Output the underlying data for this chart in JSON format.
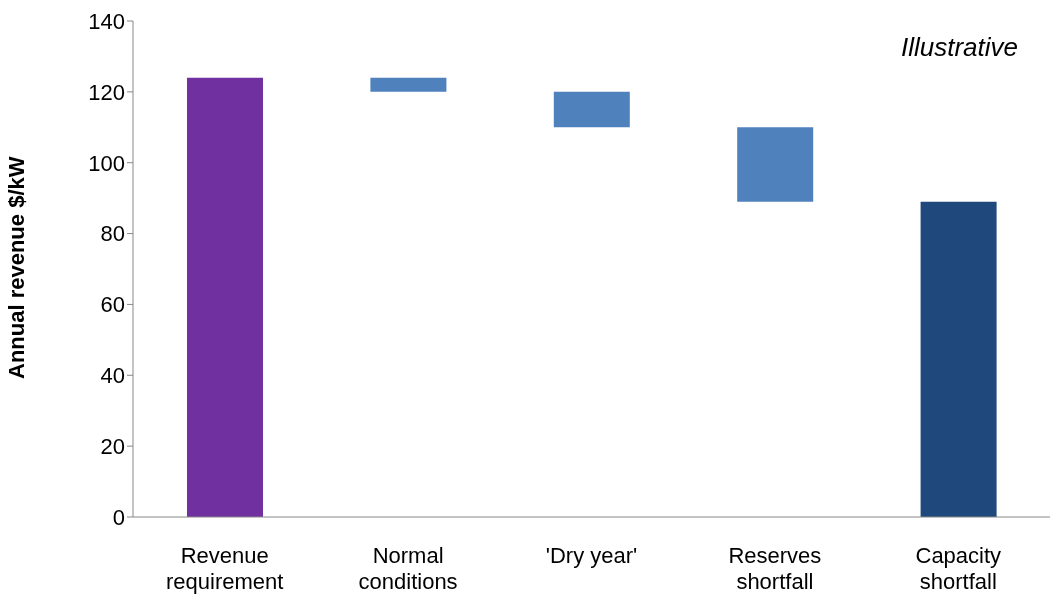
{
  "chart_data": {
    "type": "bar",
    "ylabel": "Annual revenue  $/kW",
    "annotations": [
      "Illustrative"
    ],
    "categories": [
      "Revenue requirement",
      "Normal conditions",
      "'Dry year'",
      "Reserves shortfall",
      "Capacity shortfall"
    ],
    "values": [
      124,
      4,
      10,
      21,
      89
    ],
    "base": [
      0,
      120,
      110,
      89,
      0
    ],
    "colors": [
      "#7030a0",
      "#4f81bd",
      "#4f81bd",
      "#4f81bd",
      "#1f497d"
    ],
    "ylim": [
      0,
      140
    ],
    "yticks": [
      0,
      20,
      40,
      60,
      80,
      100,
      120,
      140
    ],
    "grid": false
  }
}
